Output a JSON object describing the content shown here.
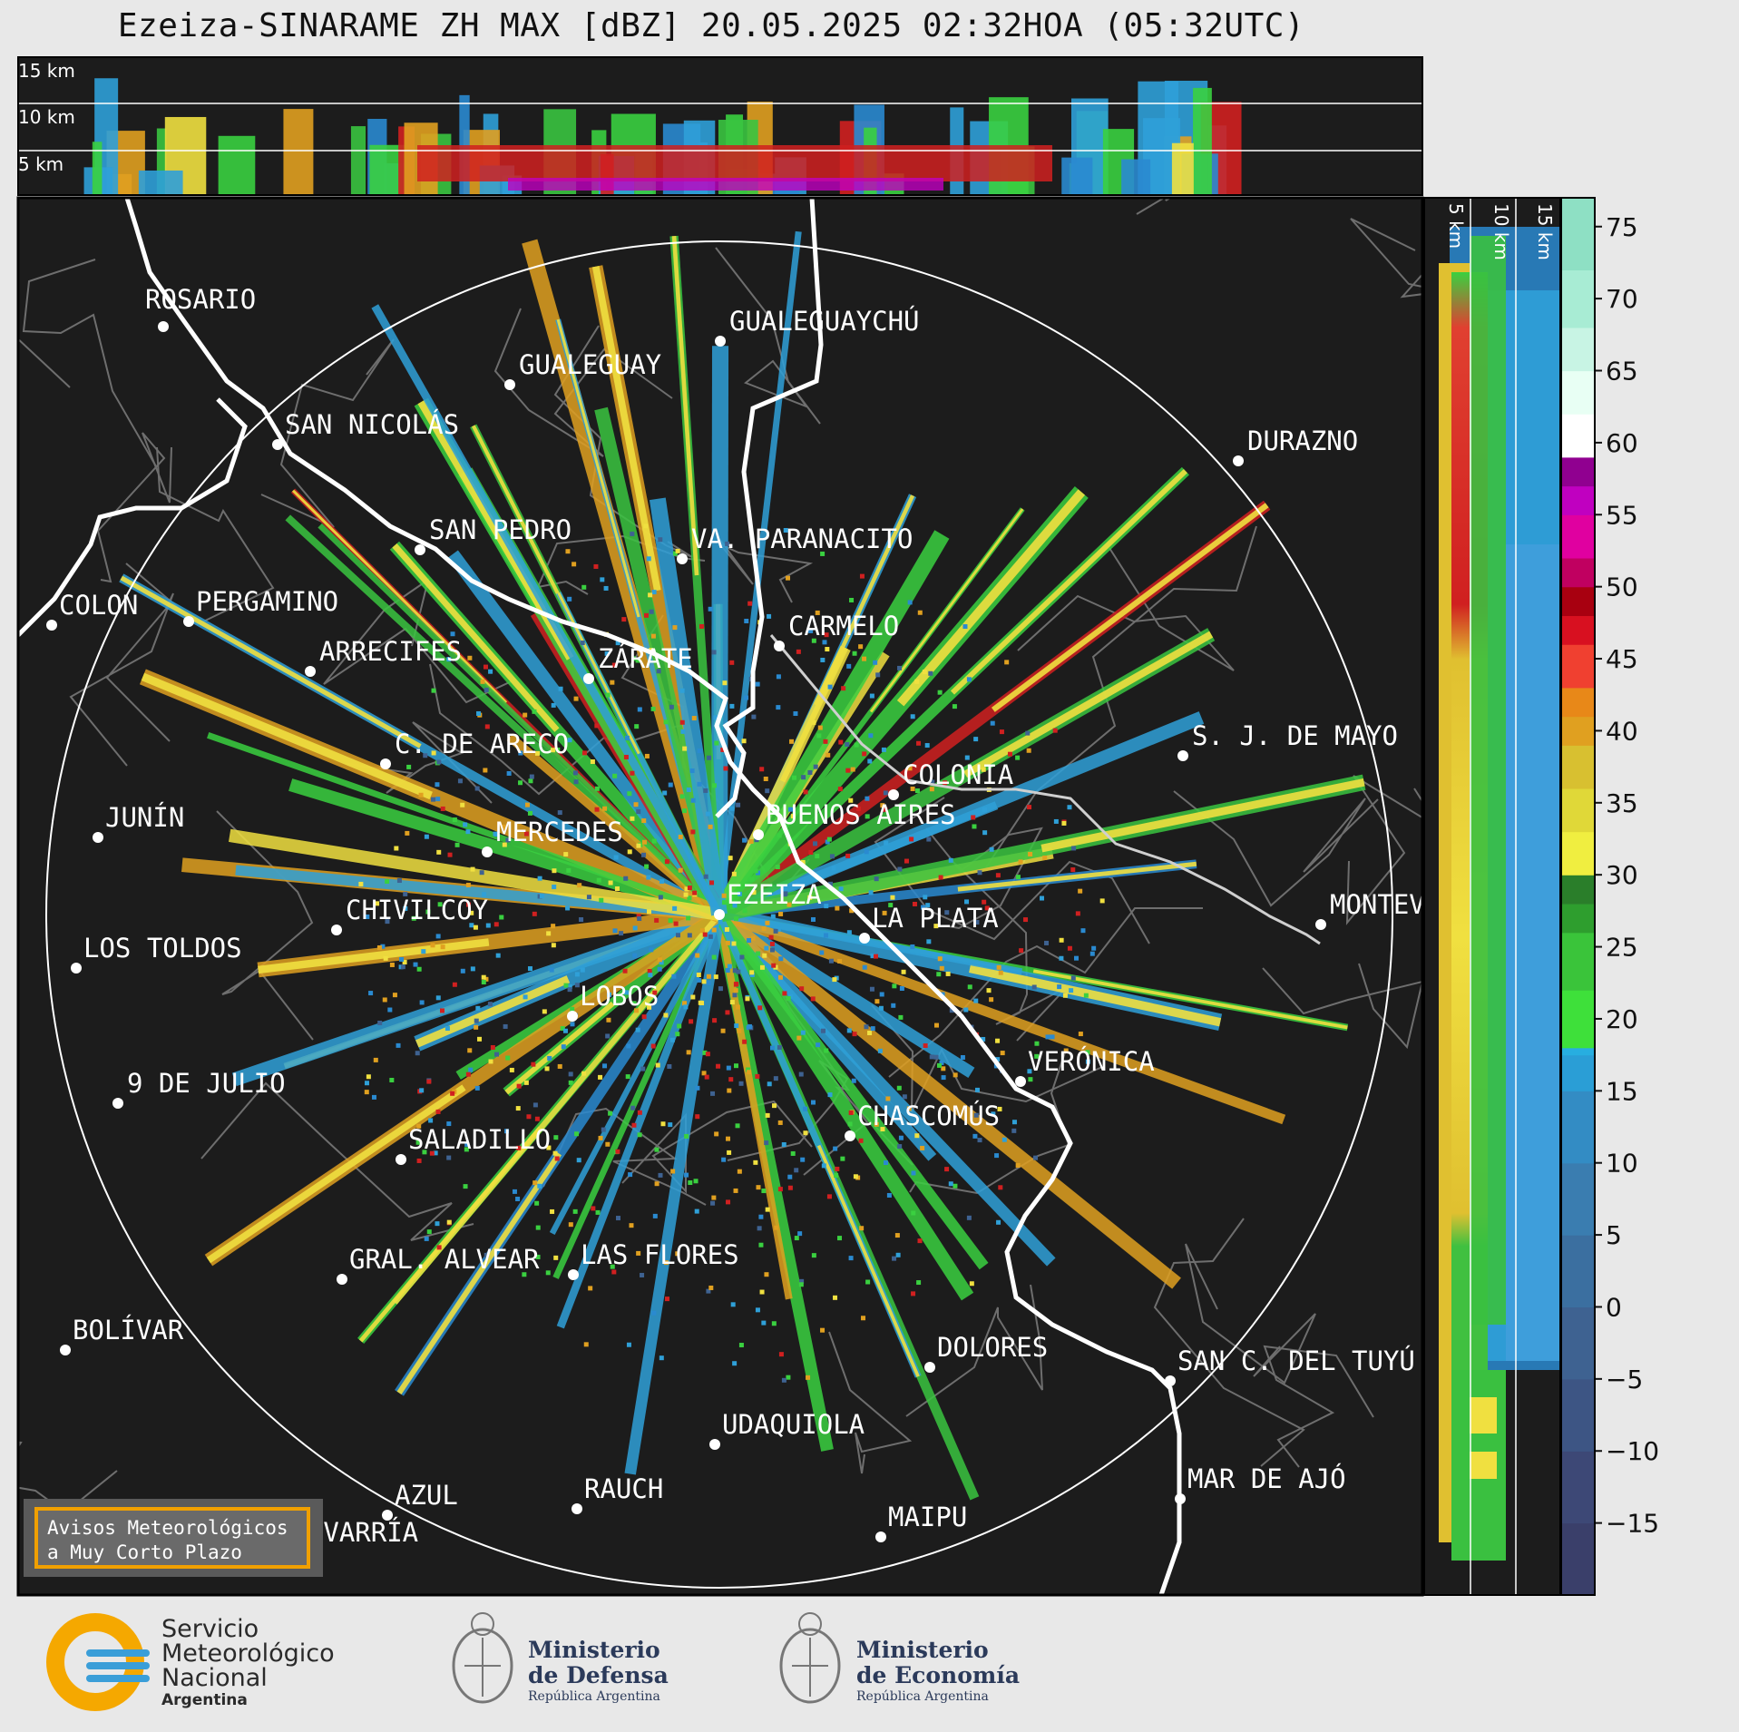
{
  "title": "Ezeiza-SINARAME ZH MAX [dBZ] 20.05.2025 02:32HOA (05:32UTC)",
  "top_panel": {
    "altitude_labels": [
      "15 km",
      "10 km",
      "5 km"
    ]
  },
  "side_panel": {
    "altitude_labels": [
      "5 km",
      "10 km",
      "15 km"
    ]
  },
  "colorbar": {
    "ticks": [
      "75",
      "70",
      "65",
      "60",
      "55",
      "50",
      "45",
      "40",
      "35",
      "30",
      "25",
      "20",
      "15",
      "10",
      "5",
      "0",
      "−5",
      "−10",
      "−15"
    ],
    "range_dbz": [
      -20,
      77
    ]
  },
  "radar_site": "EZEIZA",
  "cities": [
    {
      "name": "ROSARIO"
    },
    {
      "name": "GUALEGUAYCHÚ"
    },
    {
      "name": "GUALEGUAY"
    },
    {
      "name": "SAN NICOLÁS"
    },
    {
      "name": "DURAZNO"
    },
    {
      "name": "SAN PEDRO"
    },
    {
      "name": "VA. PARANACITO"
    },
    {
      "name": "COLON"
    },
    {
      "name": "PERGAMINO"
    },
    {
      "name": "CARMELO"
    },
    {
      "name": "ARRECIFES"
    },
    {
      "name": "ZÁRATE"
    },
    {
      "name": "S. J. DE MAYO"
    },
    {
      "name": "C. DE ARECO"
    },
    {
      "name": "COLONIA"
    },
    {
      "name": "JUNÍN"
    },
    {
      "name": "BUENOS AIRES"
    },
    {
      "name": "MERCEDES"
    },
    {
      "name": "EZEIZA"
    },
    {
      "name": "MONTEVIDEO"
    },
    {
      "name": "CHIVILCOY"
    },
    {
      "name": "LA PLATA"
    },
    {
      "name": "LOS TOLDOS"
    },
    {
      "name": "LOBOS"
    },
    {
      "name": "VERÓNICA"
    },
    {
      "name": "9 DE JULIO"
    },
    {
      "name": "CHASCOMÚS"
    },
    {
      "name": "SALADILLO"
    },
    {
      "name": "GRAL. ALVEAR"
    },
    {
      "name": "LAS FLORES"
    },
    {
      "name": "BOLÍVAR"
    },
    {
      "name": "DOLORES"
    },
    {
      "name": "SAN C. DEL TUYÚ"
    },
    {
      "name": "UDAQUIOLA"
    },
    {
      "name": "MAR DE AJÓ"
    },
    {
      "name": "AZUL"
    },
    {
      "name": "RAUCH"
    },
    {
      "name": "OLAVARRÍA"
    },
    {
      "name": "MAIPU"
    }
  ],
  "notice": {
    "line1": "Avisos Meteorológicos",
    "line2": "a Muy Corto Plazo"
  },
  "logos": {
    "smn": {
      "line1": "Servicio",
      "line2": "Meteorológico",
      "line3": "Nacional",
      "line4": "Argentina",
      "icon": "smn-swirl-icon"
    },
    "defensa": {
      "line1": "Ministerio",
      "line2": "de Defensa",
      "line3": "República Argentina",
      "icon": "coat-of-arms-icon"
    },
    "economia": {
      "line1": "Ministerio",
      "line2": "de Economía",
      "line3": "República Argentina",
      "icon": "coat-of-arms-icon"
    }
  },
  "colors": {
    "map_bg": "#1c1c1c",
    "coast": "#ffffff",
    "borders": "#7a7a7a",
    "notice_border": "#f0a000",
    "smn_orange": "#f5a800",
    "smn_blue": "#3a9ed8"
  }
}
